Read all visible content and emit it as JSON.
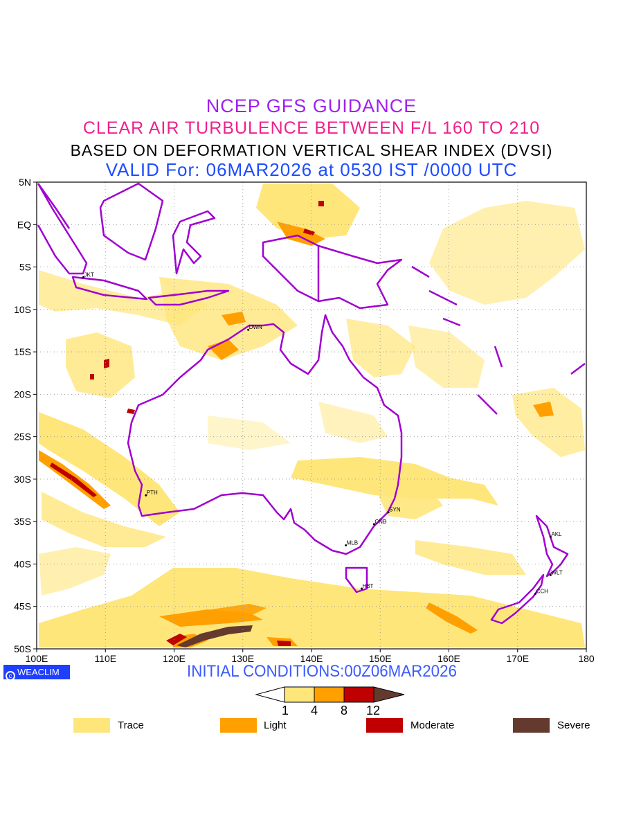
{
  "titles": {
    "line1": "NCEP GFS GUIDANCE",
    "line2": "CLEAR AIR TURBULENCE BETWEEN F/L 160 TO 210",
    "line3": "BASED ON DEFORMATION VERTICAL SHEAR INDEX (DVSI)",
    "line4": "VALID For: 06MAR2026 at 0530 IST /0000 UTC"
  },
  "map": {
    "lat_labels": [
      "5N",
      "EQ",
      "5S",
      "10S",
      "15S",
      "20S",
      "25S",
      "30S",
      "35S",
      "40S",
      "45S",
      "50S"
    ],
    "lon_labels": [
      "100E",
      "110E",
      "120E",
      "130E",
      "140E",
      "150E",
      "160E",
      "170E",
      "180"
    ],
    "lon_range": [
      100,
      180
    ],
    "lat_range": [
      5,
      -50
    ],
    "cities": [
      "JKT",
      "DWN",
      "PTH",
      "SYN",
      "CNB",
      "MLB",
      "HBT",
      "AKL",
      "WLT",
      "CCH"
    ],
    "coastline_color": "#a000d0"
  },
  "footer": {
    "logo": "WEACLIM",
    "initial_conditions": "INITIAL CONDITIONS:00Z06MAR2026"
  },
  "colorbar": {
    "thresholds": [
      "1",
      "4",
      "8",
      "12"
    ],
    "colors": [
      "#ffe67a",
      "#ffa000",
      "#c00000",
      "#653a2e"
    ]
  },
  "legend": [
    {
      "label": "Trace",
      "color": "#ffe67a"
    },
    {
      "label": "Light",
      "color": "#ffa000"
    },
    {
      "label": "Moderate",
      "color": "#c00000"
    },
    {
      "label": "Severe",
      "color": "#653a2e"
    }
  ]
}
